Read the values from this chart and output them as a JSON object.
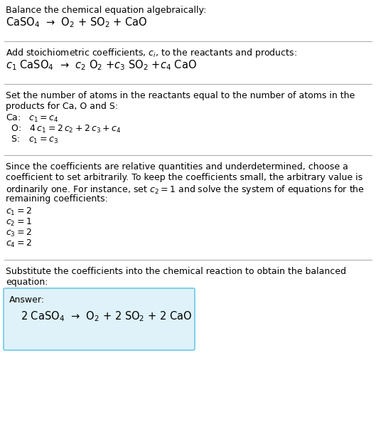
{
  "title_line1": "Balance the chemical equation algebraically:",
  "title_line2": "CaSO$_4$  →  O$_2$ + SO$_2$ + CaO",
  "section2_header": "Add stoichiometric coefficients, $c_i$, to the reactants and products:",
  "section2_eq": "$c_1$ CaSO$_4$  →  $c_2$ O$_2$ +$c_3$ SO$_2$ +$c_4$ CaO",
  "section3_header1": "Set the number of atoms in the reactants equal to the number of atoms in the",
  "section3_header2": "products for Ca, O and S:",
  "section3_ca": "Ca:   $c_1 = c_4$",
  "section3_o": "  O:   $4\\,c_1 = 2\\,c_2 + 2\\,c_3 + c_4$",
  "section3_s": "  S:   $c_1 = c_3$",
  "section4_text1": "Since the coefficients are relative quantities and underdetermined, choose a",
  "section4_text2": "coefficient to set arbitrarily. To keep the coefficients small, the arbitrary value is",
  "section4_text3": "ordinarily one. For instance, set $c_2 = 1$ and solve the system of equations for the",
  "section4_text4": "remaining coefficients:",
  "section4_c1": "$c_1 = 2$",
  "section4_c2": "$c_2 = 1$",
  "section4_c3": "$c_3 = 2$",
  "section4_c4": "$c_4 = 2$",
  "section5_header1": "Substitute the coefficients into the chemical reaction to obtain the balanced",
  "section5_header2": "equation:",
  "answer_label": "Answer:",
  "answer_eq": "2 CaSO$_4$  →  O$_2$ + 2 SO$_2$ + 2 CaO",
  "bg_color": "#ffffff",
  "box_facecolor": "#dff2f9",
  "box_edgecolor": "#6cc8e8",
  "text_color": "#000000",
  "divider_color": "#b0b0b0",
  "fs_body": 9.0,
  "fs_eq": 10.5
}
